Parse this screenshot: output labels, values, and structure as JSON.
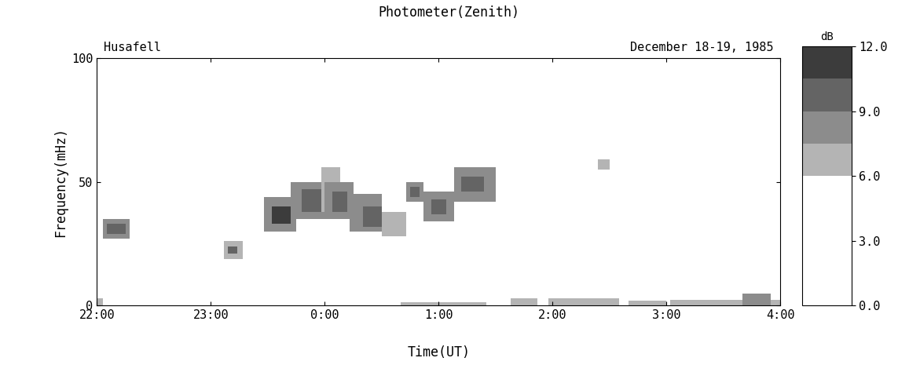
{
  "chart_data": {
    "type": "heatmap",
    "title": "Photometer(Zenith)",
    "station": "Husafell",
    "date": "December 18-19, 1985",
    "x_label": "Time(UT)",
    "y_label": "Frequency(mHz)",
    "xlim": [
      0,
      360
    ],
    "xticks": [
      {
        "value": 0,
        "label": "22:00"
      },
      {
        "value": 60,
        "label": "23:00"
      },
      {
        "value": 120,
        "label": "0:00"
      },
      {
        "value": 180,
        "label": "1:00"
      },
      {
        "value": 240,
        "label": "2:00"
      },
      {
        "value": 300,
        "label": "3:00"
      },
      {
        "value": 360,
        "label": "4:00"
      }
    ],
    "ylim": [
      0,
      100
    ],
    "yticks": [
      0,
      50,
      100
    ],
    "cells": [
      [
        3,
        17,
        27,
        35,
        8
      ],
      [
        5,
        15,
        29,
        33,
        10
      ],
      [
        67,
        77,
        19,
        26,
        7
      ],
      [
        69,
        74,
        21,
        24,
        9
      ],
      [
        88,
        105,
        30,
        44,
        8
      ],
      [
        92,
        102,
        33,
        40,
        11
      ],
      [
        102,
        120,
        35,
        50,
        8
      ],
      [
        108,
        118,
        38,
        47,
        10
      ],
      [
        118,
        128,
        38,
        56,
        6.5
      ],
      [
        120,
        135,
        35,
        50,
        8
      ],
      [
        124,
        132,
        38,
        46,
        10
      ],
      [
        133,
        150,
        30,
        45,
        8
      ],
      [
        140,
        150,
        32,
        40,
        10
      ],
      [
        150,
        163,
        28,
        38,
        7
      ],
      [
        163,
        172,
        42,
        50,
        8
      ],
      [
        165,
        170,
        44,
        48,
        10
      ],
      [
        172,
        188,
        34,
        46,
        8
      ],
      [
        176,
        184,
        37,
        43,
        10
      ],
      [
        188,
        210,
        42,
        56,
        8
      ],
      [
        192,
        204,
        46,
        52,
        10
      ],
      [
        264,
        270,
        55,
        59,
        7
      ],
      [
        0,
        3,
        0,
        3,
        7
      ],
      [
        160,
        205,
        0,
        1.5,
        6.5
      ],
      [
        218,
        232,
        0,
        3,
        7
      ],
      [
        238,
        275,
        0,
        3,
        7
      ],
      [
        280,
        300,
        0,
        2,
        6.5
      ],
      [
        302,
        360,
        0,
        2.5,
        7
      ],
      [
        340,
        355,
        0,
        5,
        8
      ]
    ],
    "colorbar_title": "dB",
    "colorbar_levels": [
      0,
      1.5,
      3,
      4.5,
      6,
      7.5,
      9,
      10.5,
      12
    ],
    "colorbar_lim": [
      0,
      12
    ],
    "colorbar_ticks": [
      {
        "value": 0,
        "label": "0.0"
      },
      {
        "value": 3,
        "label": "3.0"
      },
      {
        "value": 6,
        "label": "6.0"
      },
      {
        "value": 9,
        "label": "9.0"
      },
      {
        "value": 12,
        "label": "12.0"
      }
    ]
  }
}
